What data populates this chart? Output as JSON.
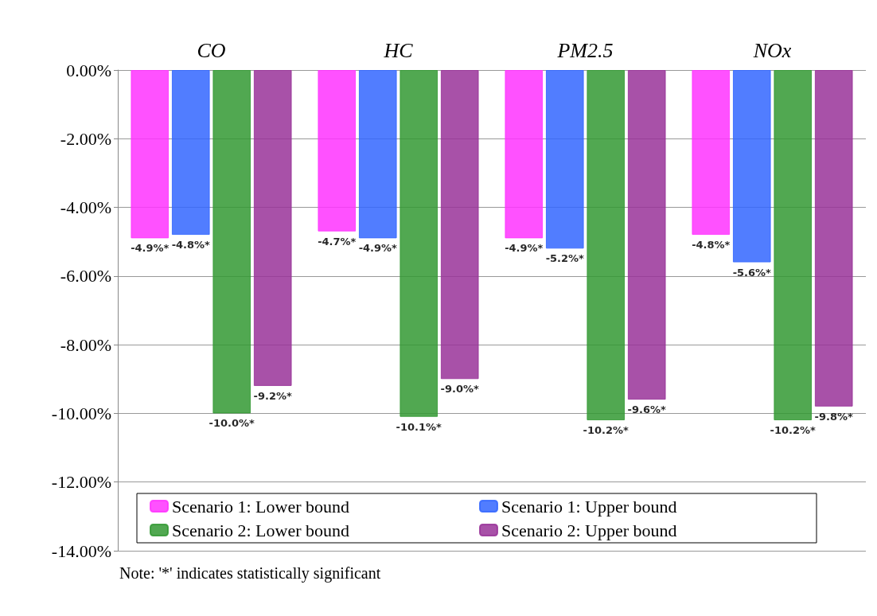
{
  "chart_data": {
    "type": "bar",
    "categories": [
      "CO",
      "HC",
      "PM2.5",
      "NOx"
    ],
    "series": [
      {
        "name": "Scenario 1: Lower bound",
        "color": "#ff33ff",
        "values": [
          -4.9,
          -4.7,
          -4.9,
          -4.8
        ],
        "value_labels": [
          "-4.9%*",
          "-4.7%*",
          "-4.9%*",
          "-4.8%*"
        ]
      },
      {
        "name": "Scenario 1: Upper bound",
        "color": "#3366ff",
        "values": [
          -4.8,
          -4.9,
          -5.2,
          -5.6
        ],
        "value_labels": [
          "-4.8%*",
          "-4.9%*",
          "-5.2%*",
          "-5.6%*"
        ]
      },
      {
        "name": "Scenario 2: Lower bound",
        "color": "#339933",
        "values": [
          -10.0,
          -10.1,
          -10.2,
          -10.2
        ],
        "value_labels": [
          "-10.0%*",
          "-10.1%*",
          "-10.2%*",
          "-10.2%*"
        ]
      },
      {
        "name": "Scenario 2: Upper bound",
        "color": "#993399",
        "values": [
          -9.2,
          -9.0,
          -9.6,
          -9.8
        ],
        "value_labels": [
          "-9.2%*",
          "-9.0%*",
          "-9.6%*",
          "-9.8%*"
        ]
      }
    ],
    "ylim": [
      -14,
      0
    ],
    "yticks": [
      {
        "value": -14,
        "label": "-14.00%"
      },
      {
        "value": -12,
        "label": "-12.00%"
      },
      {
        "value": -10,
        "label": "-10.00%"
      },
      {
        "value": -8,
        "label": "-8.00%"
      },
      {
        "value": -6,
        "label": "-6.00%"
      },
      {
        "value": -4,
        "label": "-4.00%"
      },
      {
        "value": -2,
        "label": "-2.00%"
      },
      {
        "value": 0,
        "label": "0.00%"
      }
    ],
    "grid": "y",
    "legend": "bottom",
    "annotations": [
      "Note: '*' indicates statistically significant"
    ]
  }
}
